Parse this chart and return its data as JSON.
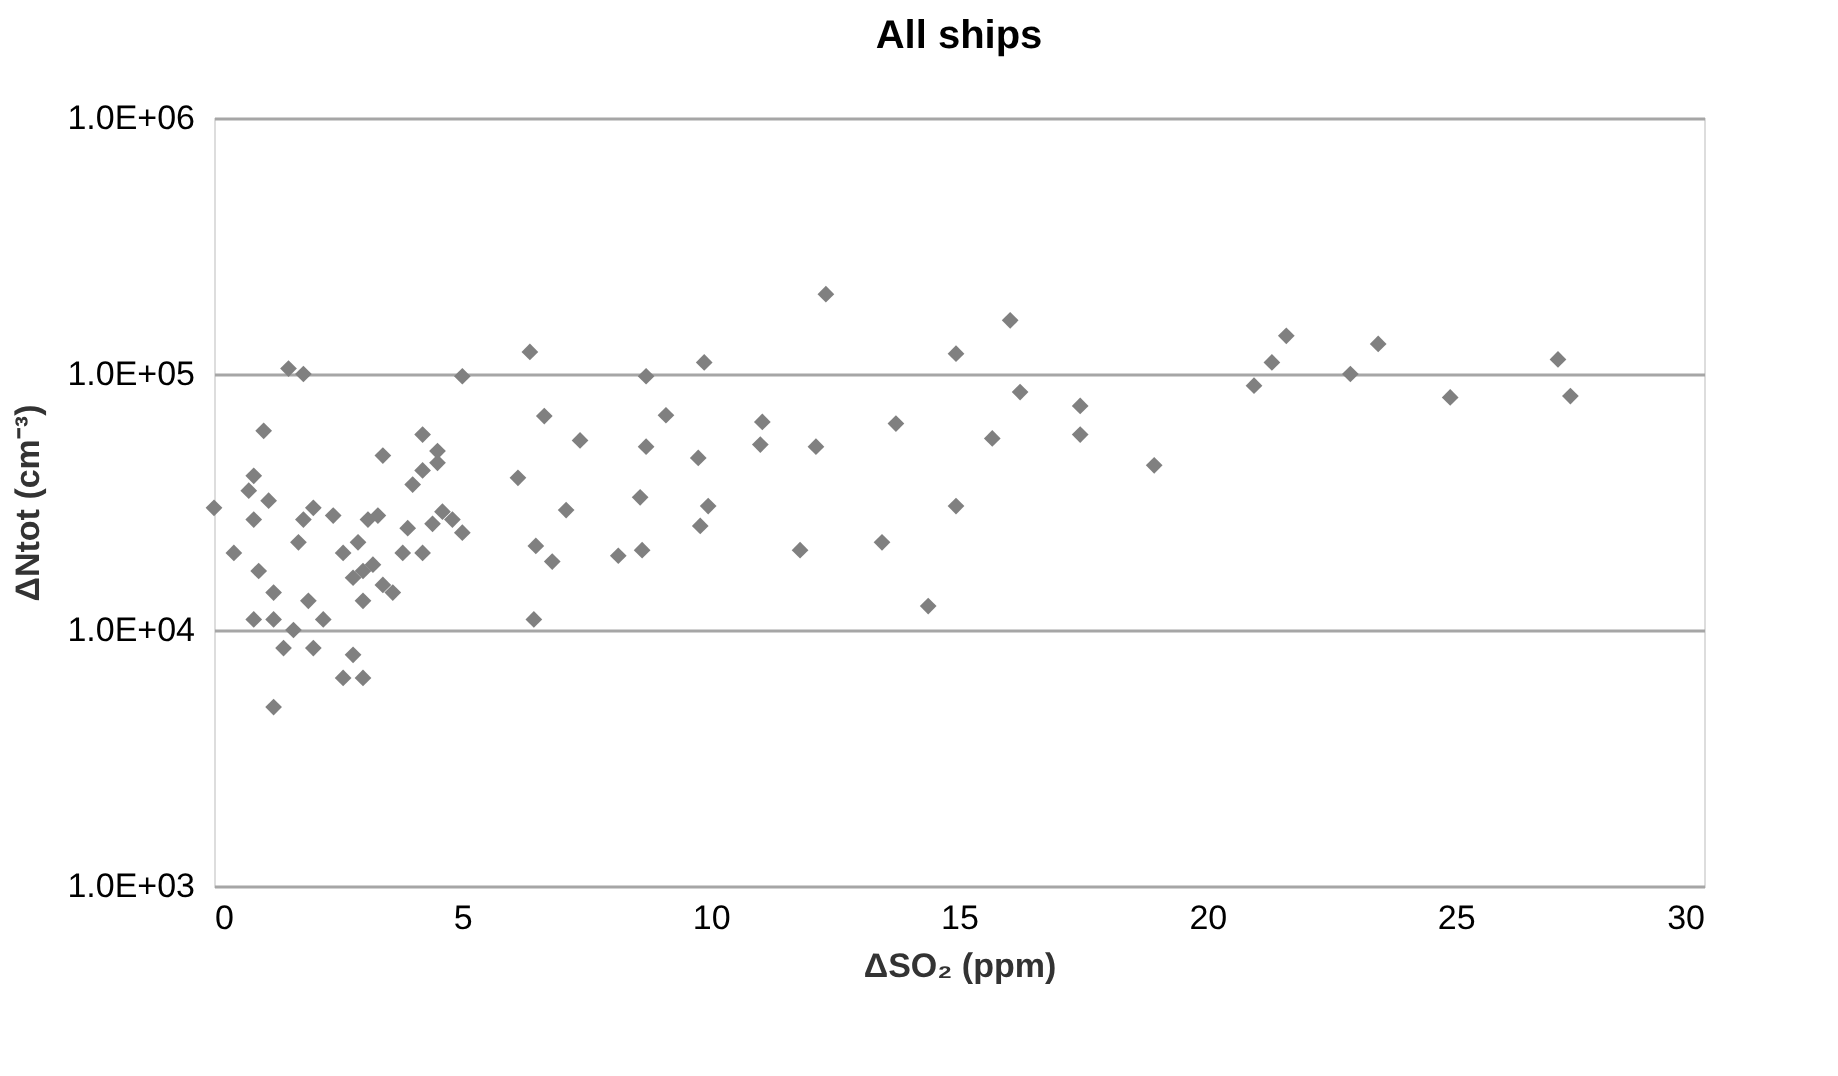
{
  "chart_data": {
    "type": "scatter",
    "title": "All ships",
    "xlabel": "ΔSO₂ (ppm)",
    "ylabel": "ΔNtot (cm⁻³)",
    "xlim": [
      0,
      30
    ],
    "xticks": [
      0,
      5,
      10,
      15,
      20,
      25,
      30
    ],
    "ylim": [
      1000,
      1000000
    ],
    "yticks": [
      {
        "value": 1000,
        "label": "1.0E+03"
      },
      {
        "value": 10000,
        "label": "1.0E+04"
      },
      {
        "value": 100000,
        "label": "1.0E+05"
      },
      {
        "value": 1000000,
        "label": "1.0E+06"
      }
    ],
    "log": "y",
    "grid": "y",
    "marker": "diamond",
    "legend": false,
    "series": [
      {
        "color": "#808080",
        "x": [
          0,
          0.4,
          0.7,
          0.8,
          0.8,
          0.8,
          0.9,
          1.0,
          1.1,
          1.2,
          1.2,
          1.2,
          1.4,
          1.5,
          1.6,
          1.7,
          1.8,
          1.8,
          1.9,
          2.0,
          2.0,
          2.2,
          2.4,
          2.6,
          2.6,
          2.8,
          2.8,
          2.9,
          3.0,
          3.0,
          3.0,
          3.1,
          3.2,
          3.3,
          3.4,
          3.4,
          3.6,
          3.8,
          3.9,
          4.0,
          4.2,
          4.2,
          4.2,
          4.4,
          4.5,
          4.5,
          4.6,
          4.8,
          5.0,
          5.0,
          6.36,
          6.65,
          6.12,
          7.09,
          7.37,
          6.48,
          6.81,
          6.44,
          8.7,
          8.7,
          9.1,
          8.58,
          8.14,
          8.62,
          9.87,
          9.75,
          9.95,
          9.79,
          11.04,
          11.0,
          12.12,
          11.8,
          12.32,
          13.73,
          13.45,
          14.38,
          14.94,
          14.94,
          15.67,
          16.03,
          16.23,
          17.44,
          17.44,
          18.93,
          20.94,
          21.3,
          21.59,
          22.88,
          23.44,
          24.89,
          27.06,
          27.31
        ],
        "values": [
          30000,
          20000,
          35000,
          40000,
          27000,
          11000,
          17000,
          60000,
          32000,
          14000,
          11000,
          5000,
          8500,
          105000,
          10000,
          22000,
          27000,
          100000,
          13000,
          30000,
          8500,
          11000,
          28000,
          20000,
          6500,
          16000,
          8000,
          22000,
          17000,
          13000,
          6500,
          27000,
          18000,
          28000,
          48000,
          15000,
          14000,
          20000,
          25000,
          37000,
          42000,
          58000,
          20000,
          26000,
          45000,
          50000,
          29000,
          27000,
          98000,
          24000,
          122000,
          68500,
          39300,
          29400,
          55000,
          21300,
          18500,
          11000,
          98000,
          52000,
          69000,
          33000,
          19500,
          20500,
          111000,
          47000,
          30500,
          25500,
          65000,
          53000,
          52000,
          20500,
          205000,
          64000,
          22000,
          12400,
          120000,
          30500,
          56000,
          162000,
          85000,
          75000,
          58000,
          44000,
          90000,
          111000,
          141000,
          100000,
          131000,
          81000,
          114000,
          82000
        ]
      }
    ]
  }
}
